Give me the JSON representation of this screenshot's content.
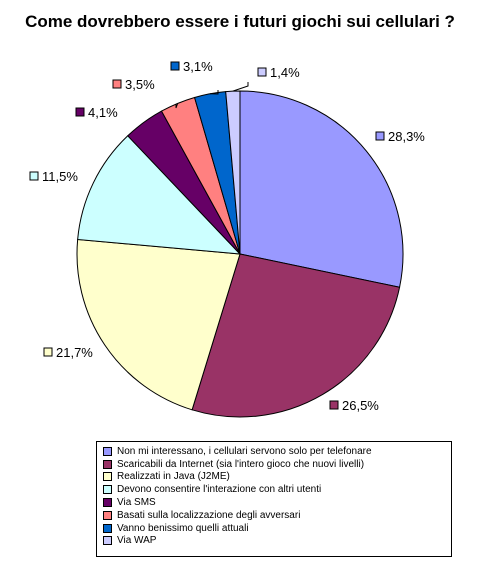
{
  "chart_data": {
    "type": "pie",
    "title": "Come dovrebbero essere i futuri giochi sui cellulari ?",
    "categories": [
      "Non mi interessano, i cellulari servono solo per telefonare",
      "Scaricabili da Internet (sia l'intero gioco che nuovi livelli)",
      "Realizzati in Java (J2ME)",
      "Devono consentire l'interazione con altri utenti",
      "Via SMS",
      "Basati sulla localizzazione degli avversari",
      "Vanno benissimo quelli attuali",
      "Via WAP"
    ],
    "values": [
      28.3,
      26.5,
      21.7,
      11.5,
      4.1,
      3.5,
      3.1,
      1.4
    ],
    "labels": [
      "28,3%",
      "26,5%",
      "21,7%",
      "11,5%",
      "4,1%",
      "3,5%",
      "3,1%",
      "1,4%"
    ],
    "colors": [
      "#9999ff",
      "#993366",
      "#ffffcc",
      "#ccffff",
      "#660066",
      "#ff8080",
      "#0066cc",
      "#ccccff"
    ],
    "legend_position": "bottom"
  }
}
